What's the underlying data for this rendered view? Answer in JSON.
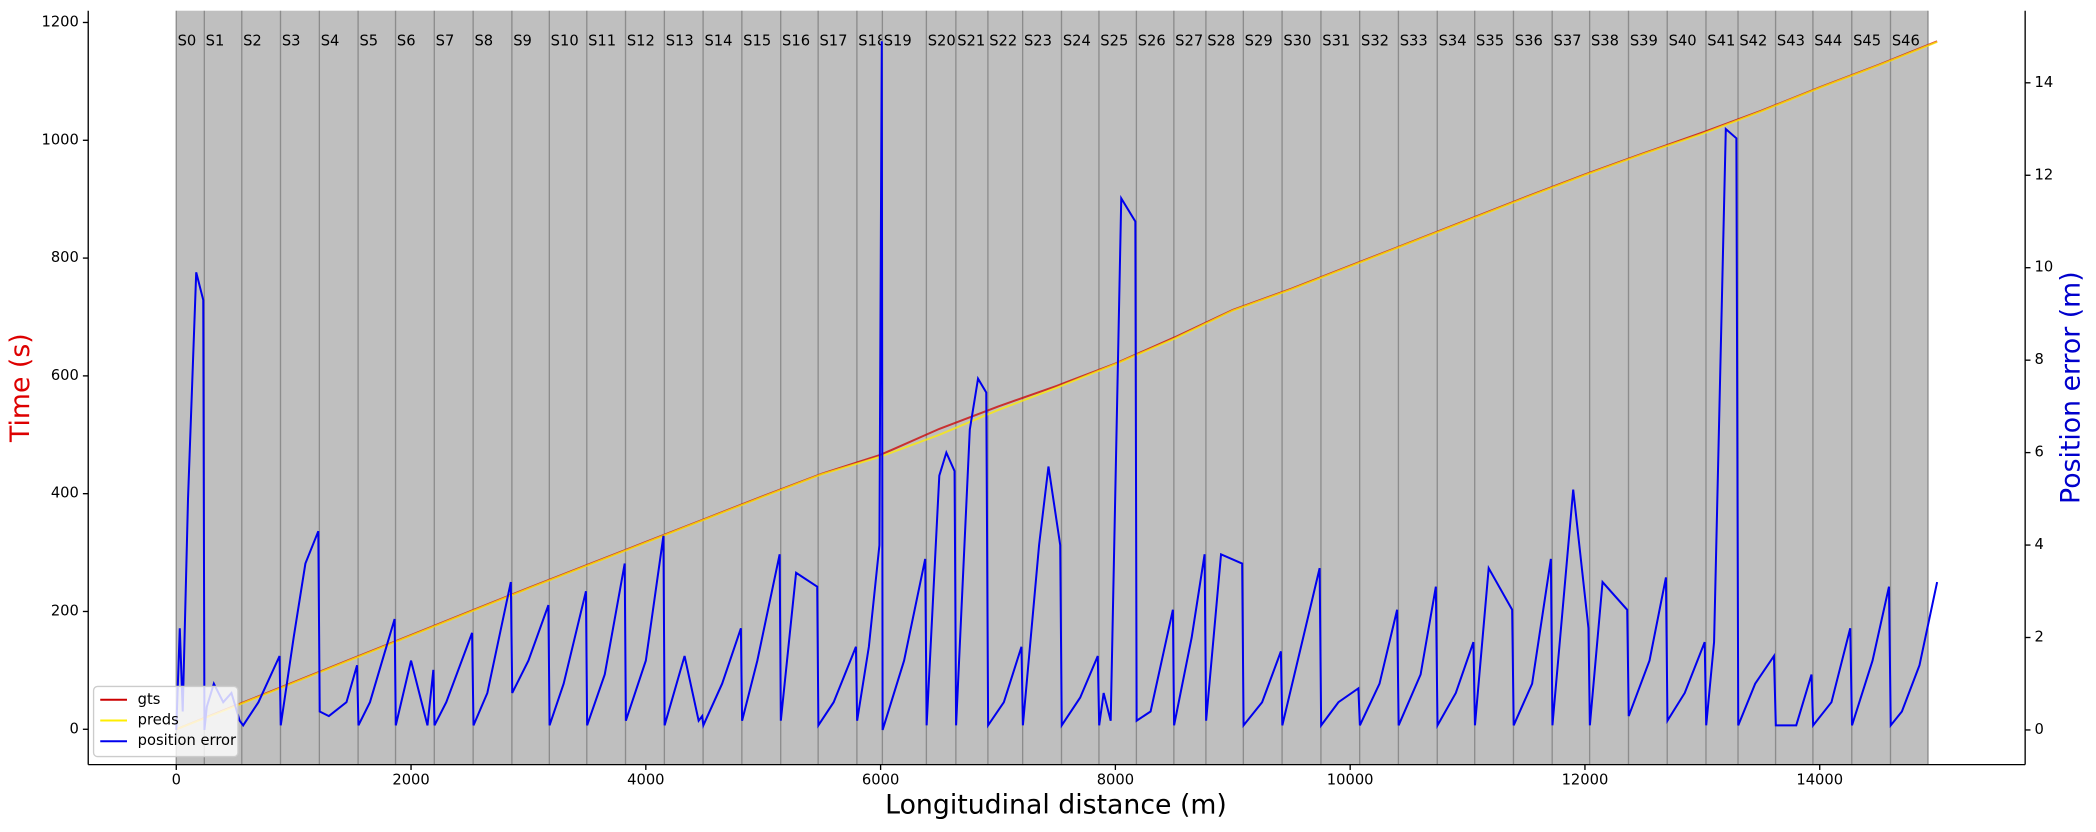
{
  "chart_data": {
    "type": "line",
    "x_label": "Longitudinal distance (m)",
    "y_label": "Time (s)",
    "y2_label": "Position error (m)",
    "y_label_color": "#dd0000",
    "y2_label_color": "#0000cc",
    "xlim": [
      -750,
      15750
    ],
    "xticks": [
      0,
      2000,
      4000,
      6000,
      8000,
      10000,
      12000,
      14000
    ],
    "ylim": [
      -60,
      1220
    ],
    "yticks": [
      0,
      200,
      400,
      600,
      800,
      1000,
      1200
    ],
    "y2lim": [
      -0.75,
      15.56
    ],
    "y2ticks": [
      0,
      2,
      4,
      6,
      8,
      10,
      12,
      14
    ],
    "legend": "lower left",
    "segment_color": "#bfbfbf",
    "segment_edge_color": "#8c8c8c",
    "segments": [
      {
        "label": "S0",
        "start": 0,
        "end": 239
      },
      {
        "label": "S1",
        "start": 239,
        "end": 558
      },
      {
        "label": "S2",
        "start": 558,
        "end": 888
      },
      {
        "label": "S3",
        "start": 888,
        "end": 1219
      },
      {
        "label": "S4",
        "start": 1219,
        "end": 1549
      },
      {
        "label": "S5",
        "start": 1549,
        "end": 1868
      },
      {
        "label": "S6",
        "start": 1868,
        "end": 2198
      },
      {
        "label": "S7",
        "start": 2198,
        "end": 2529
      },
      {
        "label": "S8",
        "start": 2529,
        "end": 2859
      },
      {
        "label": "S9",
        "start": 2859,
        "end": 3178
      },
      {
        "label": "S10",
        "start": 3178,
        "end": 3497
      },
      {
        "label": "S11",
        "start": 3497,
        "end": 3827
      },
      {
        "label": "S12",
        "start": 3827,
        "end": 4158
      },
      {
        "label": "S13",
        "start": 4158,
        "end": 4488
      },
      {
        "label": "S14",
        "start": 4488,
        "end": 4818
      },
      {
        "label": "S15",
        "start": 4818,
        "end": 5149
      },
      {
        "label": "S16",
        "start": 5149,
        "end": 5468
      },
      {
        "label": "S17",
        "start": 5468,
        "end": 5798
      },
      {
        "label": "S18",
        "start": 5798,
        "end": 6015
      },
      {
        "label": "S19",
        "start": 6015,
        "end": 6390
      },
      {
        "label": "S20",
        "start": 6390,
        "end": 6641
      },
      {
        "label": "S21",
        "start": 6641,
        "end": 6914
      },
      {
        "label": "S22",
        "start": 6914,
        "end": 7210
      },
      {
        "label": "S23",
        "start": 7210,
        "end": 7541
      },
      {
        "label": "S24",
        "start": 7541,
        "end": 7860
      },
      {
        "label": "S25",
        "start": 7860,
        "end": 8179
      },
      {
        "label": "S26",
        "start": 8179,
        "end": 8498
      },
      {
        "label": "S27",
        "start": 8498,
        "end": 8771
      },
      {
        "label": "S28",
        "start": 8771,
        "end": 9090
      },
      {
        "label": "S29",
        "start": 9090,
        "end": 9420
      },
      {
        "label": "S30",
        "start": 9420,
        "end": 9751
      },
      {
        "label": "S31",
        "start": 9751,
        "end": 10081
      },
      {
        "label": "S32",
        "start": 10081,
        "end": 10411
      },
      {
        "label": "S33",
        "start": 10411,
        "end": 10742
      },
      {
        "label": "S34",
        "start": 10742,
        "end": 11061
      },
      {
        "label": "S35",
        "start": 11061,
        "end": 11391
      },
      {
        "label": "S36",
        "start": 11391,
        "end": 11721
      },
      {
        "label": "S37",
        "start": 11721,
        "end": 12040
      },
      {
        "label": "S38",
        "start": 12040,
        "end": 12371
      },
      {
        "label": "S39",
        "start": 12371,
        "end": 12701
      },
      {
        "label": "S40",
        "start": 12701,
        "end": 13031
      },
      {
        "label": "S41",
        "start": 13031,
        "end": 13304
      },
      {
        "label": "S42",
        "start": 13304,
        "end": 13624
      },
      {
        "label": "S43",
        "start": 13624,
        "end": 13942
      },
      {
        "label": "S44",
        "start": 13942,
        "end": 14273
      },
      {
        "label": "S45",
        "start": 14273,
        "end": 14603
      },
      {
        "label": "S46",
        "start": 14603,
        "end": 14922
      }
    ],
    "series": [
      {
        "name": "gts",
        "color": "#cc0000",
        "axis": "y",
        "x": [
          0,
          500,
          1000,
          1500,
          2000,
          2500,
          3000,
          3500,
          4000,
          4500,
          5000,
          5500,
          6000,
          6500,
          7000,
          7500,
          8000,
          8500,
          9000,
          9500,
          10000,
          10500,
          11000,
          11500,
          12000,
          12500,
          13000,
          13500,
          14000,
          14500,
          15000
        ],
        "values": [
          0,
          40,
          80,
          120,
          160,
          200,
          240,
          279,
          318,
          357,
          396,
          434,
          466,
          510,
          548,
          583,
          621,
          665,
          712,
          748,
          787,
          826,
          865,
          904,
          942,
          978,
          1013,
          1050,
          1090,
          1128,
          1168
        ]
      },
      {
        "name": "preds",
        "color": "#ffee00",
        "axis": "y",
        "x": [
          0,
          500,
          1000,
          1500,
          2000,
          2500,
          3000,
          3500,
          4000,
          4500,
          5000,
          5500,
          6000,
          6500,
          7000,
          7500,
          8000,
          8500,
          9000,
          9500,
          10000,
          10500,
          11000,
          11500,
          12000,
          12500,
          13000,
          13500,
          14000,
          14500,
          15000
        ],
        "values": [
          0,
          39,
          79,
          119,
          159,
          199,
          239,
          278,
          317,
          356,
          395,
          433,
          463,
          500,
          542,
          580,
          620,
          663,
          711,
          747,
          786,
          825,
          864,
          903,
          941,
          977,
          1011,
          1049,
          1089,
          1127,
          1167
        ]
      },
      {
        "name": "position error",
        "color": "#0000ee",
        "axis": "y2",
        "x": [
          0,
          30,
          55,
          100,
          170,
          230,
          240,
          260,
          320,
          400,
          470,
          540,
          570,
          700,
          880,
          890,
          1000,
          1100,
          1210,
          1222,
          1300,
          1450,
          1540,
          1552,
          1650,
          1860,
          1870,
          2000,
          2140,
          2190,
          2200,
          2300,
          2520,
          2532,
          2650,
          2850,
          2862,
          3000,
          3170,
          3180,
          3300,
          3490,
          3500,
          3650,
          3820,
          3830,
          4000,
          4150,
          4160,
          4330,
          4450,
          4480,
          4490,
          4650,
          4810,
          4820,
          4950,
          5140,
          5150,
          5280,
          5460,
          5470,
          5600,
          5790,
          5800,
          5900,
          5990,
          6010,
          6017,
          6200,
          6380,
          6392,
          6500,
          6560,
          6630,
          6643,
          6760,
          6830,
          6900,
          6916,
          7050,
          7200,
          7212,
          7350,
          7430,
          7530,
          7543,
          7700,
          7850,
          7862,
          7900,
          7960,
          8050,
          8170,
          8181,
          8300,
          8490,
          8500,
          8650,
          8760,
          8773,
          8900,
          9080,
          9092,
          9250,
          9410,
          9422,
          9600,
          9740,
          9753,
          9900,
          10070,
          10083,
          10250,
          10400,
          10413,
          10600,
          10730,
          10744,
          10900,
          11050,
          11063,
          11180,
          11380,
          11393,
          11550,
          11710,
          11723,
          11900,
          12030,
          12042,
          12150,
          12360,
          12373,
          12550,
          12690,
          12703,
          12850,
          13020,
          13033,
          13100,
          13200,
          13290,
          13306,
          13450,
          13610,
          13626,
          13800,
          13930,
          13944,
          14100,
          14260,
          14275,
          14450,
          14590,
          14605,
          14700,
          14850,
          15000
        ],
        "values": [
          0,
          2.2,
          0.4,
          5,
          9.9,
          9.3,
          0,
          0.5,
          1.0,
          0.6,
          0.8,
          0.2,
          0.1,
          0.6,
          1.6,
          0.1,
          2.0,
          3.6,
          4.3,
          0.4,
          0.3,
          0.6,
          1.4,
          0.1,
          0.6,
          2.4,
          0.1,
          1.5,
          0.1,
          1.3,
          0.1,
          0.6,
          2.1,
          0.1,
          0.8,
          3.2,
          0.8,
          1.5,
          2.7,
          0.1,
          1.0,
          3.0,
          0.1,
          1.2,
          3.6,
          0.2,
          1.5,
          4.2,
          0.1,
          1.6,
          0.2,
          0.3,
          0.1,
          1.0,
          2.2,
          0.2,
          1.5,
          3.8,
          0.2,
          3.4,
          3.1,
          0.1,
          0.6,
          1.8,
          0.2,
          1.8,
          4,
          14.9,
          0,
          1.5,
          3.7,
          0.1,
          5.5,
          6.0,
          5.6,
          0.1,
          6.5,
          7.6,
          7.3,
          0.1,
          0.6,
          1.8,
          0.1,
          4,
          5.7,
          4.0,
          0.1,
          0.7,
          1.6,
          0.1,
          0.8,
          0.2,
          11.5,
          11.0,
          0.2,
          0.4,
          2.6,
          0.1,
          2,
          3.8,
          0.2,
          3.8,
          3.6,
          0.1,
          0.6,
          1.7,
          0.1,
          2.0,
          3.5,
          0.1,
          0.6,
          0.9,
          0.1,
          1.0,
          2.6,
          0.1,
          1.2,
          3.1,
          0.1,
          0.8,
          1.9,
          0.1,
          3.5,
          2.6,
          0.1,
          1.0,
          3.7,
          0.1,
          5.2,
          2.2,
          0.1,
          3.2,
          2.6,
          0.3,
          1.5,
          3.3,
          0.2,
          0.8,
          1.9,
          0.1,
          1.9,
          13.0,
          12.8,
          0.1,
          1,
          1.6,
          0.1,
          0.1,
          1.2,
          0.1,
          0.6,
          2.2,
          0.1,
          1.5,
          3.1,
          0.1,
          0.4,
          1.4,
          3.2
        ]
      }
    ]
  }
}
